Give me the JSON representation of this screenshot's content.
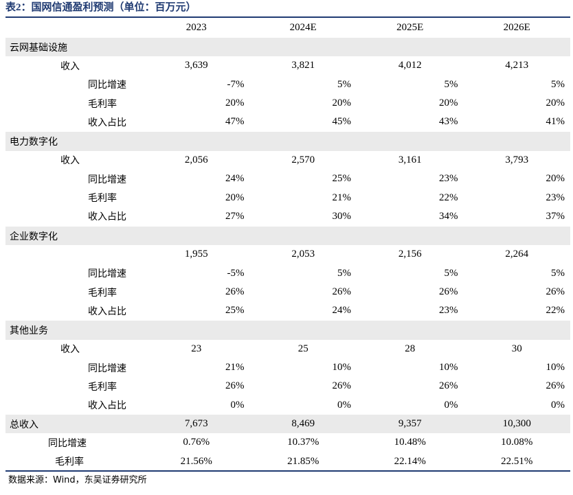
{
  "title": "表2：国网信通盈利预测（单位：百万元）",
  "header": {
    "c0": "",
    "years": [
      "2023",
      "2024E",
      "2025E",
      "2026E"
    ]
  },
  "sections": [
    {
      "name": "云网基础设施",
      "revenue_label": "收入",
      "revenue": [
        "3,639",
        "3,821",
        "4,012",
        "4,213"
      ],
      "growth_label": "同比增速",
      "growth": [
        "-7%",
        "5%",
        "5%",
        "5%"
      ],
      "margin_label": "毛利率",
      "margin": [
        "20%",
        "20%",
        "20%",
        "20%"
      ],
      "share_label": "收入占比",
      "share": [
        "47%",
        "45%",
        "43%",
        "41%"
      ]
    },
    {
      "name": "电力数字化",
      "revenue_label": "收入",
      "revenue": [
        "2,056",
        "2,570",
        "3,161",
        "3,793"
      ],
      "growth_label": "同比增速",
      "growth": [
        "24%",
        "25%",
        "23%",
        "20%"
      ],
      "margin_label": "毛利率",
      "margin": [
        "20%",
        "21%",
        "22%",
        "23%"
      ],
      "share_label": "收入占比",
      "share": [
        "27%",
        "30%",
        "34%",
        "37%"
      ]
    },
    {
      "name": "企业数字化",
      "revenue_label": "",
      "revenue": [
        "1,955",
        "2,053",
        "2,156",
        "2,264"
      ],
      "growth_label": "同比增速",
      "growth": [
        "-5%",
        "5%",
        "5%",
        "5%"
      ],
      "margin_label": "毛利率",
      "margin": [
        "26%",
        "26%",
        "26%",
        "26%"
      ],
      "share_label": "收入占比",
      "share": [
        "25%",
        "24%",
        "23%",
        "22%"
      ]
    },
    {
      "name": "其他业务",
      "revenue_label": "收入",
      "revenue": [
        "23",
        "25",
        "28",
        "30"
      ],
      "growth_label": "同比增速",
      "growth": [
        "21%",
        "10%",
        "10%",
        "10%"
      ],
      "margin_label": "毛利率",
      "margin": [
        "26%",
        "26%",
        "26%",
        "26%"
      ],
      "share_label": "收入占比",
      "share": [
        "0%",
        "0%",
        "0%",
        "0%"
      ]
    }
  ],
  "total": {
    "label": "总收入",
    "revenue": [
      "7,673",
      "8,469",
      "9,357",
      "10,300"
    ],
    "growth_label": "同比增速",
    "growth": [
      "0.76%",
      "10.37%",
      "10.48%",
      "10.08%"
    ],
    "margin_label": "毛利率",
    "margin": [
      "21.56%",
      "21.85%",
      "22.14%",
      "22.51%"
    ]
  },
  "source": "数据来源：Wind，东吴证券研究所",
  "colors": {
    "title": "#1f3a72",
    "rule": "#1f3a72",
    "shade": "#eaeaea"
  }
}
